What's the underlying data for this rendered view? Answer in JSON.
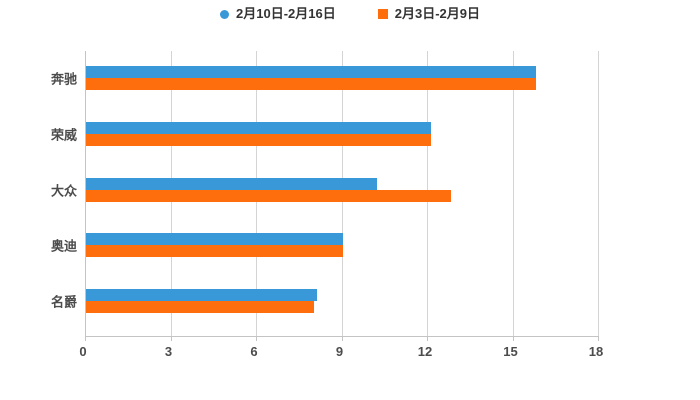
{
  "chart_data": {
    "type": "bar",
    "orientation": "horizontal",
    "title": "",
    "xlabel": "",
    "ylabel": "",
    "categories": [
      "奔驰",
      "荣威",
      "大众",
      "奥迪",
      "名爵"
    ],
    "series": [
      {
        "name": "2月10日-2月16日",
        "color": "#3898d8",
        "marker": "circle",
        "values": [
          15.8,
          12.1,
          10.2,
          9.0,
          8.1
        ]
      },
      {
        "name": "2月3日-2月9日",
        "color": "#ff6e0c",
        "marker": "square",
        "values": [
          15.8,
          12.1,
          12.8,
          9.0,
          8.0
        ]
      }
    ],
    "xlim": [
      0,
      18
    ],
    "xticks": [
      0,
      3,
      6,
      9,
      12,
      15,
      18
    ],
    "grid": true,
    "legend_position": "top-center"
  }
}
